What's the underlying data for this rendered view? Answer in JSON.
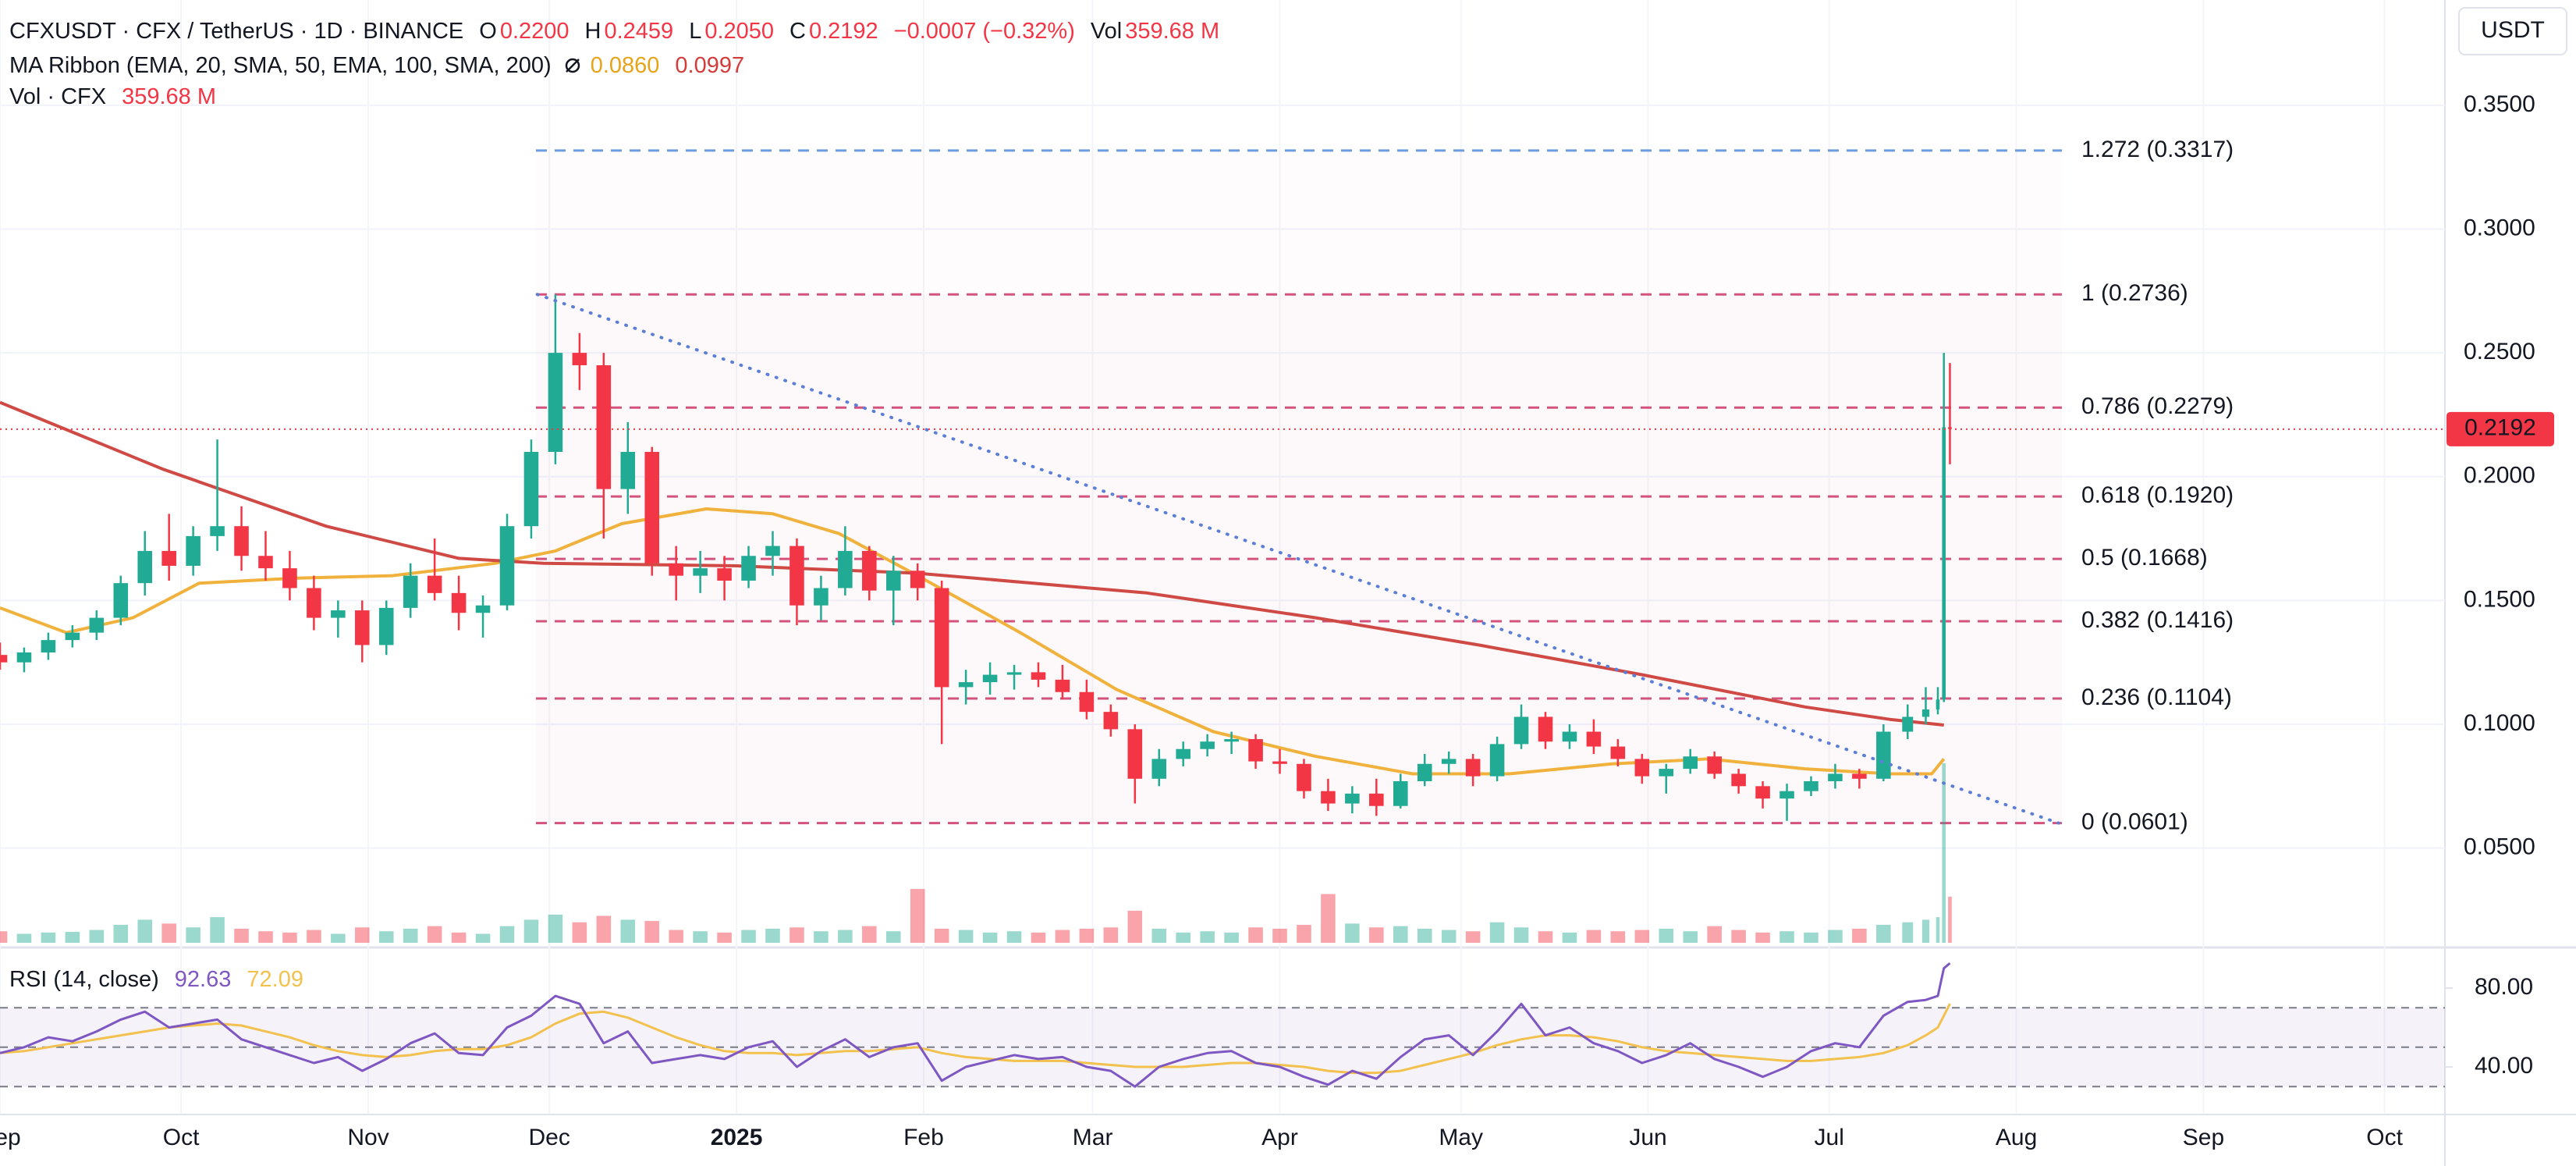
{
  "header": {
    "symbol": "CFXUSDT · CFX / TetherUS · 1D · BINANCE",
    "ohlc": [
      [
        "O",
        "0.2200"
      ],
      [
        "H",
        "0.2459"
      ],
      [
        "L",
        "0.2050"
      ],
      [
        "C",
        "0.2192"
      ]
    ],
    "change": "−0.0007 (−0.32%)",
    "vol_label": "Vol",
    "vol": "359.68 M",
    "ribbon": "MA Ribbon (EMA, 20, SMA, 50, EMA, 100, SMA, 200)",
    "ribbon_values": [
      "0.0860",
      "0.0997"
    ],
    "volume_title": "Vol · CFX",
    "volume_value": "359.68 M",
    "rsi_title": "RSI (14, close)",
    "rsi_values": [
      "92.63",
      "72.09"
    ]
  },
  "chart_data": {
    "type": "candlestick",
    "unit": "USDT",
    "up_color": "#22ab94",
    "down_color": "#f23645",
    "x": [
      0,
      4,
      8,
      12,
      16,
      20,
      24,
      28,
      32,
      36,
      40,
      44,
      48,
      52,
      56,
      60,
      64,
      68,
      72,
      76,
      80,
      84,
      88,
      92,
      96,
      100,
      104,
      108,
      112,
      116,
      120,
      124,
      128,
      132,
      136,
      140,
      144,
      148,
      152,
      156,
      160,
      164,
      168,
      172,
      176,
      180,
      184,
      188,
      192,
      196,
      200,
      204,
      208,
      212,
      216,
      220,
      224,
      228,
      232,
      236,
      240,
      244,
      248,
      252,
      256,
      260,
      264,
      268,
      272,
      276,
      280,
      284,
      288,
      292,
      296,
      300,
      304,
      308,
      312,
      316,
      319,
      321,
      322,
      323
    ],
    "open": [
      0.128,
      0.125,
      0.129,
      0.134,
      0.137,
      0.143,
      0.157,
      0.17,
      0.164,
      0.176,
      0.18,
      0.168,
      0.163,
      0.155,
      0.143,
      0.146,
      0.132,
      0.147,
      0.16,
      0.153,
      0.145,
      0.148,
      0.18,
      0.21,
      0.25,
      0.245,
      0.195,
      0.21,
      0.165,
      0.16,
      0.163,
      0.158,
      0.168,
      0.172,
      0.148,
      0.155,
      0.17,
      0.154,
      0.162,
      0.155,
      0.115,
      0.117,
      0.12,
      0.121,
      0.118,
      0.113,
      0.105,
      0.098,
      0.078,
      0.086,
      0.09,
      0.093,
      0.094,
      0.085,
      0.084,
      0.073,
      0.068,
      0.072,
      0.067,
      0.077,
      0.084,
      0.086,
      0.079,
      0.092,
      0.103,
      0.093,
      0.097,
      0.091,
      0.086,
      0.079,
      0.082,
      0.087,
      0.08,
      0.075,
      0.07,
      0.073,
      0.077,
      0.08,
      0.078,
      0.097,
      0.103,
      0.106,
      0.11,
      0.22
    ],
    "high": [
      0.133,
      0.131,
      0.137,
      0.14,
      0.146,
      0.16,
      0.178,
      0.185,
      0.18,
      0.215,
      0.188,
      0.178,
      0.17,
      0.16,
      0.15,
      0.15,
      0.15,
      0.165,
      0.175,
      0.16,
      0.152,
      0.185,
      0.215,
      0.2736,
      0.258,
      0.25,
      0.222,
      0.212,
      0.172,
      0.17,
      0.168,
      0.172,
      0.178,
      0.175,
      0.16,
      0.18,
      0.172,
      0.168,
      0.165,
      0.158,
      0.122,
      0.125,
      0.124,
      0.125,
      0.124,
      0.118,
      0.108,
      0.1,
      0.09,
      0.093,
      0.096,
      0.097,
      0.096,
      0.09,
      0.086,
      0.078,
      0.075,
      0.078,
      0.08,
      0.088,
      0.089,
      0.088,
      0.095,
      0.108,
      0.105,
      0.1,
      0.102,
      0.094,
      0.088,
      0.084,
      0.09,
      0.089,
      0.082,
      0.077,
      0.076,
      0.079,
      0.084,
      0.082,
      0.1,
      0.108,
      0.115,
      0.115,
      0.25,
      0.2459
    ],
    "low": [
      0.122,
      0.121,
      0.126,
      0.131,
      0.134,
      0.14,
      0.152,
      0.158,
      0.16,
      0.17,
      0.162,
      0.158,
      0.15,
      0.138,
      0.135,
      0.125,
      0.128,
      0.143,
      0.15,
      0.138,
      0.135,
      0.146,
      0.175,
      0.205,
      0.235,
      0.175,
      0.185,
      0.16,
      0.15,
      0.153,
      0.15,
      0.155,
      0.16,
      0.14,
      0.142,
      0.152,
      0.15,
      0.14,
      0.15,
      0.092,
      0.108,
      0.112,
      0.114,
      0.115,
      0.11,
      0.102,
      0.095,
      0.068,
      0.075,
      0.083,
      0.087,
      0.088,
      0.082,
      0.08,
      0.07,
      0.065,
      0.064,
      0.063,
      0.066,
      0.075,
      0.08,
      0.075,
      0.077,
      0.09,
      0.09,
      0.09,
      0.088,
      0.083,
      0.076,
      0.072,
      0.08,
      0.078,
      0.072,
      0.066,
      0.061,
      0.071,
      0.074,
      0.074,
      0.077,
      0.094,
      0.1,
      0.104,
      0.109,
      0.205
    ],
    "close": [
      0.125,
      0.129,
      0.134,
      0.137,
      0.143,
      0.157,
      0.17,
      0.164,
      0.176,
      0.18,
      0.168,
      0.163,
      0.155,
      0.143,
      0.146,
      0.132,
      0.147,
      0.16,
      0.153,
      0.145,
      0.148,
      0.18,
      0.21,
      0.25,
      0.245,
      0.195,
      0.21,
      0.165,
      0.16,
      0.163,
      0.158,
      0.168,
      0.172,
      0.148,
      0.155,
      0.17,
      0.154,
      0.162,
      0.155,
      0.115,
      0.117,
      0.12,
      0.121,
      0.118,
      0.113,
      0.105,
      0.098,
      0.078,
      0.086,
      0.09,
      0.093,
      0.094,
      0.085,
      0.084,
      0.073,
      0.068,
      0.072,
      0.067,
      0.077,
      0.084,
      0.086,
      0.079,
      0.092,
      0.103,
      0.093,
      0.097,
      0.091,
      0.086,
      0.079,
      0.082,
      0.087,
      0.08,
      0.075,
      0.07,
      0.073,
      0.077,
      0.08,
      0.078,
      0.097,
      0.103,
      0.106,
      0.11,
      0.22,
      0.2192
    ],
    "volume": [
      90,
      70,
      80,
      85,
      100,
      140,
      180,
      150,
      120,
      200,
      110,
      90,
      80,
      100,
      70,
      120,
      90,
      110,
      130,
      80,
      70,
      130,
      180,
      220,
      160,
      210,
      180,
      170,
      100,
      90,
      80,
      100,
      110,
      120,
      90,
      100,
      130,
      90,
      420,
      110,
      100,
      80,
      90,
      80,
      100,
      110,
      120,
      250,
      110,
      80,
      90,
      80,
      120,
      110,
      140,
      380,
      150,
      120,
      130,
      110,
      100,
      90,
      160,
      120,
      90,
      80,
      100,
      90,
      100,
      110,
      90,
      130,
      100,
      80,
      90,
      80,
      100,
      110,
      140,
      160,
      180,
      200,
      1400,
      359.68
    ],
    "ma": [
      {
        "color": "#f0b23c",
        "x": [
          0,
          11,
          22,
          33,
          49,
          65,
          82,
          92,
          103,
          117,
          128,
          139,
          152,
          169,
          185,
          201,
          218,
          234,
          250,
          267,
          283,
          299,
          313,
          320,
          322
        ],
        "values": [
          0.147,
          0.137,
          0.143,
          0.157,
          0.159,
          0.16,
          0.165,
          0.17,
          0.181,
          0.187,
          0.185,
          0.177,
          0.16,
          0.137,
          0.114,
          0.097,
          0.087,
          0.08,
          0.08,
          0.084,
          0.086,
          0.082,
          0.08,
          0.08,
          0.086
        ]
      },
      {
        "color": "#cf4a45",
        "x": [
          0,
          27,
          54,
          76,
          90,
          122,
          152,
          190,
          218,
          245,
          272,
          299,
          313,
          322
        ],
        "values": [
          0.23,
          0.203,
          0.18,
          0.167,
          0.165,
          0.164,
          0.161,
          0.153,
          0.143,
          0.132,
          0.12,
          0.107,
          0.102,
          0.0997
        ]
      }
    ],
    "xlim": [
      0,
      405
    ],
    "xticks": [
      {
        "value": 0,
        "label": "Sep"
      },
      {
        "value": 30,
        "label": "Oct"
      },
      {
        "value": 61,
        "label": "Nov"
      },
      {
        "value": 91,
        "label": "Dec"
      },
      {
        "value": 122,
        "label": "2025"
      },
      {
        "value": 153,
        "label": "Feb"
      },
      {
        "value": 181,
        "label": "Mar"
      },
      {
        "value": 212,
        "label": "Apr"
      },
      {
        "value": 242,
        "label": "May"
      },
      {
        "value": 273,
        "label": "Jun"
      },
      {
        "value": 303,
        "label": "Jul"
      },
      {
        "value": 334,
        "label": "Aug"
      },
      {
        "value": 365,
        "label": "Sep"
      },
      {
        "value": 395,
        "label": "Oct"
      }
    ],
    "ylim": [
      0.0108,
      0.3925
    ],
    "yticks": [
      {
        "value": 0.05,
        "label": "0.0500"
      },
      {
        "value": 0.1,
        "label": "0.1000"
      },
      {
        "value": 0.15,
        "label": "0.1500"
      },
      {
        "value": 0.2,
        "label": "0.2000"
      },
      {
        "value": 0.25,
        "label": "0.2500"
      },
      {
        "value": 0.3,
        "label": "0.3000"
      },
      {
        "value": 0.35,
        "label": "0.3500"
      }
    ],
    "grid": true,
    "last_price": {
      "value": 0.2192,
      "label": "0.2192",
      "color": "#f23645"
    },
    "fib": {
      "levels": [
        0.3317,
        0.2736,
        0.2279,
        0.192,
        0.1668,
        0.1416,
        0.1104,
        0.0601
      ],
      "value_labels": [
        "1.272 (0.3317)",
        "1 (0.2736)",
        "0.786 (0.2279)",
        "0.618 (0.1920)",
        "0.5 (0.1668)",
        "0.382 (0.1416)",
        "0.236 (0.1104)",
        "0 (0.0601)"
      ],
      "colors": [
        "#6b9de0",
        "#d4527c",
        "#d4527c",
        "#d4527c",
        "#d4527c",
        "#d4527c",
        "#d4527c",
        "#d4527c"
      ]
    },
    "trendline": {
      "x": [
        89,
        341
      ],
      "values": [
        0.2736,
        0.0601
      ],
      "color": "#5b7fd6"
    },
    "rsi": {
      "ylim": [
        16.65,
        99.4
      ],
      "yticks": [
        {
          "value": 40,
          "label": "40.00"
        },
        {
          "value": 80,
          "label": "80.00"
        }
      ],
      "levels": [
        70,
        50,
        30
      ],
      "color": "#7e57c2",
      "ma_color": "#f2c14e",
      "values": [
        47,
        50,
        55,
        53,
        58,
        64,
        68,
        60,
        62,
        64,
        54,
        50,
        46,
        42,
        45,
        38,
        44,
        52,
        57,
        47,
        46,
        60,
        66,
        76,
        72,
        52,
        58,
        42,
        44,
        46,
        44,
        50,
        53,
        40,
        48,
        54,
        45,
        50,
        52,
        33,
        40,
        43,
        46,
        44,
        45,
        40,
        38,
        30,
        40,
        44,
        47,
        48,
        42,
        40,
        35,
        31,
        38,
        34,
        45,
        54,
        56,
        46,
        58,
        72,
        56,
        60,
        52,
        48,
        42,
        46,
        52,
        44,
        40,
        35,
        40,
        48,
        52,
        50,
        66,
        73,
        74,
        76,
        90,
        92.63
      ],
      "ma_values": [
        47,
        48,
        50,
        52,
        54,
        56,
        58,
        60,
        61,
        62,
        61,
        58,
        55,
        51,
        48,
        46,
        45,
        46,
        48,
        49,
        49,
        51,
        55,
        62,
        67,
        68,
        65,
        60,
        55,
        51,
        48,
        47,
        47,
        46,
        47,
        48,
        48,
        49,
        50,
        47,
        45,
        44,
        43,
        43,
        43,
        42,
        41,
        40,
        40,
        40,
        41,
        42,
        42,
        41,
        40,
        38,
        37,
        37,
        38,
        41,
        44,
        47,
        51,
        54,
        56,
        56,
        55,
        53,
        50,
        48,
        47,
        46,
        45,
        44,
        43,
        43,
        44,
        45,
        47,
        51,
        56,
        60,
        66,
        72.09
      ]
    }
  }
}
